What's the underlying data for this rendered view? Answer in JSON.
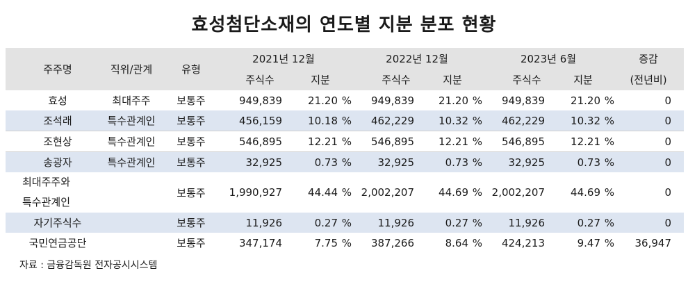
{
  "title": "효성첨단소재의 연도별 지분 분포 현황",
  "header": {
    "name": "주주명",
    "relation": "직위/관계",
    "type": "유형",
    "period1": "2021년 12월",
    "period2": "2022년 12월",
    "period3": "2023년 6월",
    "shares": "주식수",
    "stake": "지분",
    "change_line1": "증감",
    "change_line2": "(전년비)"
  },
  "rows": [
    {
      "name": "효성",
      "relation": "최대주주",
      "type": "보통주",
      "s1": "949,839",
      "p1": "21.20",
      "u1": "%",
      "s2": "949,839",
      "p2": "21.20",
      "u2": "%",
      "s3": "949,839",
      "p3": "21.20",
      "u3": "%",
      "chg": "0"
    },
    {
      "name": "조석래",
      "relation": "특수관계인",
      "type": "보통주",
      "s1": "456,159",
      "p1": "10.18",
      "u1": "%",
      "s2": "462,229",
      "p2": "10.32",
      "u2": "%",
      "s3": "462,229",
      "p3": "10.32",
      "u3": "%",
      "chg": "0"
    },
    {
      "name": "조현상",
      "relation": "특수관계인",
      "type": "보통주",
      "s1": "546,895",
      "p1": "12.21",
      "u1": "%",
      "s2": "546,895",
      "p2": "12.21",
      "u2": "%",
      "s3": "546,895",
      "p3": "12.21",
      "u3": "%",
      "chg": "0"
    },
    {
      "name": "송광자",
      "relation": "특수관계인",
      "type": "보통주",
      "s1": "32,925",
      "p1": "0.73",
      "u1": "%",
      "s2": "32,925",
      "p2": "0.73",
      "u2": "%",
      "s3": "32,925",
      "p3": "0.73",
      "u3": "%",
      "chg": "0"
    },
    {
      "name_line1": "최대주주와",
      "name_line2": "특수관계인",
      "relation": "",
      "type": "보통주",
      "s1": "1,990,927",
      "p1": "44.44",
      "u1": "%",
      "s2": "2,002,207",
      "p2": "44.69",
      "u2": "%",
      "s3": "2,002,207",
      "p3": "44.69",
      "u3": "%",
      "chg": "0"
    },
    {
      "name": "자기주식수",
      "relation": "",
      "type": "보통주",
      "s1": "11,926",
      "p1": "0.27",
      "u1": "%",
      "s2": "11,926",
      "p2": "0.27",
      "u2": "%",
      "s3": "11,926",
      "p3": "0.27",
      "u3": "%",
      "chg": "0"
    },
    {
      "name": "국민연금공단",
      "relation": "",
      "type": "보통주",
      "s1": "347,174",
      "p1": "7.75",
      "u1": "%",
      "s2": "387,266",
      "p2": "8.64",
      "u2": "%",
      "s3": "424,213",
      "p3": "9.47",
      "u3": "%",
      "chg": "36,947"
    }
  ],
  "source": "자료 : 금융감독원 전자공시시스템",
  "colors": {
    "header_bg": "#e3e3e3",
    "shade_bg": "#dde5f1"
  }
}
